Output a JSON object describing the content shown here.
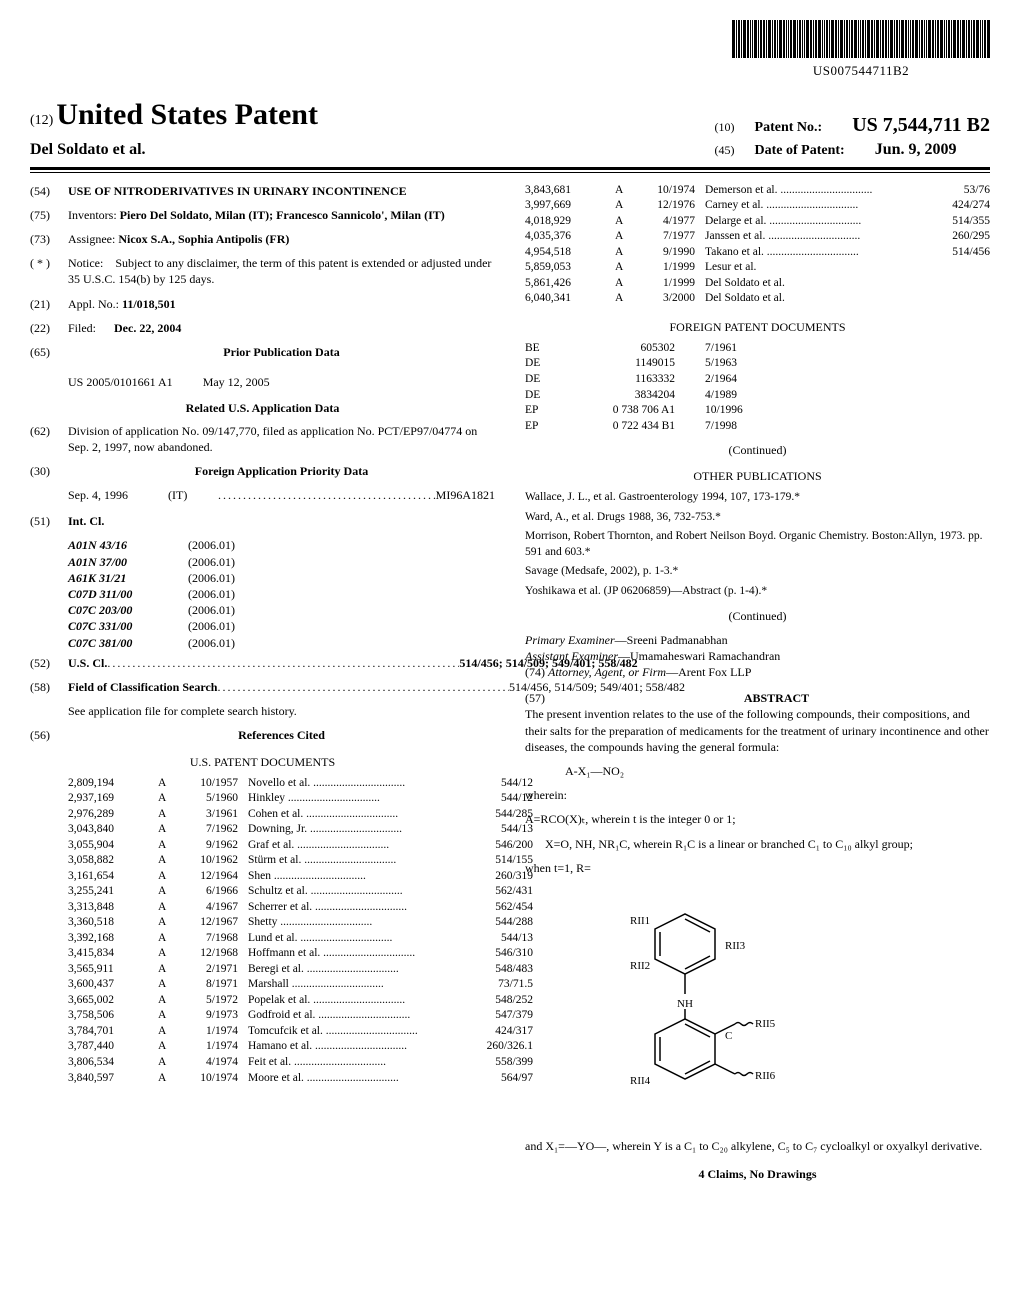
{
  "barcode_doc_number": "US007544711B2",
  "header": {
    "usp_prefix": "(12)",
    "usp_title": "United States Patent",
    "inventor_line": "Del Soldato et al.",
    "patent_no_prefix": "(10)",
    "patent_no_label": "Patent No.:",
    "patent_no_value": "US 7,544,711 B2",
    "date_prefix": "(45)",
    "date_label": "Date of Patent:",
    "date_value": "Jun. 9, 2009"
  },
  "left": {
    "title_code": "(54)",
    "title": "USE OF NITRODERIVATIVES IN URINARY INCONTINENCE",
    "inventors_code": "(75)",
    "inventors_label": "Inventors:",
    "inventors_value": "Piero Del Soldato, Milan (IT); Francesco Sannicolo', Milan (IT)",
    "assignee_code": "(73)",
    "assignee_label": "Assignee:",
    "assignee_value": "Nicox S.A., Sophia Antipolis (FR)",
    "notice_code": "( * )",
    "notice_label": "Notice:",
    "notice_value": "Subject to any disclaimer, the term of this patent is extended or adjusted under 35 U.S.C. 154(b) by 125 days.",
    "appl_code": "(21)",
    "appl_label": "Appl. No.:",
    "appl_value": "11/018,501",
    "filed_code": "(22)",
    "filed_label": "Filed:",
    "filed_value": "Dec. 22, 2004",
    "prior_pub_code": "(65)",
    "prior_pub_heading": "Prior Publication Data",
    "prior_pub_num": "US 2005/0101661 A1",
    "prior_pub_date": "May 12, 2005",
    "related_heading": "Related U.S. Application Data",
    "division_code": "(62)",
    "division_text": "Division of application No. 09/147,770, filed as application No. PCT/EP97/04774 on Sep. 2, 1997, now abandoned.",
    "foreign_priority_code": "(30)",
    "foreign_priority_heading": "Foreign Application Priority Data",
    "foreign_priority_date": "Sep. 4, 1996",
    "foreign_priority_cc": "(IT)",
    "foreign_priority_num": "MI96A1821",
    "intcl_code": "(51)",
    "intcl_label": "Int. Cl.",
    "intcl": [
      {
        "code": "A01N 43/16",
        "year": "(2006.01)"
      },
      {
        "code": "A01N 37/00",
        "year": "(2006.01)"
      },
      {
        "code": "A61K 31/21",
        "year": "(2006.01)"
      },
      {
        "code": "C07D 311/00",
        "year": "(2006.01)"
      },
      {
        "code": "C07C 203/00",
        "year": "(2006.01)"
      },
      {
        "code": "C07C 331/00",
        "year": "(2006.01)"
      },
      {
        "code": "C07C 381/00",
        "year": "(2006.01)"
      }
    ],
    "uscl_code": "(52)",
    "uscl_label": "U.S. Cl.",
    "uscl_value": "514/456; 514/509; 549/401; 558/482",
    "field_code": "(58)",
    "field_label": "Field of Classification Search",
    "field_value": "514/456, 514/509; 549/401; 558/482",
    "field_note": "See application file for complete search history.",
    "ref_code": "(56)",
    "ref_heading": "References Cited",
    "us_patents_heading": "U.S. PATENT DOCUMENTS",
    "us_patents": [
      {
        "num": "2,809,194",
        "type": "A",
        "date": "10/1957",
        "author": "Novello et al.",
        "cls": "544/12"
      },
      {
        "num": "2,937,169",
        "type": "A",
        "date": "5/1960",
        "author": "Hinkley",
        "cls": "544/12"
      },
      {
        "num": "2,976,289",
        "type": "A",
        "date": "3/1961",
        "author": "Cohen et al.",
        "cls": "544/285"
      },
      {
        "num": "3,043,840",
        "type": "A",
        "date": "7/1962",
        "author": "Downing, Jr.",
        "cls": "544/13"
      },
      {
        "num": "3,055,904",
        "type": "A",
        "date": "9/1962",
        "author": "Graf et al.",
        "cls": "546/200"
      },
      {
        "num": "3,058,882",
        "type": "A",
        "date": "10/1962",
        "author": "Stürm et al.",
        "cls": "514/155"
      },
      {
        "num": "3,161,654",
        "type": "A",
        "date": "12/1964",
        "author": "Shen",
        "cls": "260/319"
      },
      {
        "num": "3,255,241",
        "type": "A",
        "date": "6/1966",
        "author": "Schultz et al.",
        "cls": "562/431"
      },
      {
        "num": "3,313,848",
        "type": "A",
        "date": "4/1967",
        "author": "Scherrer et al.",
        "cls": "562/454"
      },
      {
        "num": "3,360,518",
        "type": "A",
        "date": "12/1967",
        "author": "Shetty",
        "cls": "544/288"
      },
      {
        "num": "3,392,168",
        "type": "A",
        "date": "7/1968",
        "author": "Lund et al.",
        "cls": "544/13"
      },
      {
        "num": "3,415,834",
        "type": "A",
        "date": "12/1968",
        "author": "Hoffmann et al.",
        "cls": "546/310"
      },
      {
        "num": "3,565,911",
        "type": "A",
        "date": "2/1971",
        "author": "Beregi et al.",
        "cls": "548/483"
      },
      {
        "num": "3,600,437",
        "type": "A",
        "date": "8/1971",
        "author": "Marshall",
        "cls": "73/71.5"
      },
      {
        "num": "3,665,002",
        "type": "A",
        "date": "5/1972",
        "author": "Popelak et al.",
        "cls": "548/252"
      },
      {
        "num": "3,758,506",
        "type": "A",
        "date": "9/1973",
        "author": "Godfroid et al.",
        "cls": "547/379"
      },
      {
        "num": "3,784,701",
        "type": "A",
        "date": "1/1974",
        "author": "Tomcufcik et al.",
        "cls": "424/317"
      },
      {
        "num": "3,787,440",
        "type": "A",
        "date": "1/1974",
        "author": "Hamano et al.",
        "cls": "260/326.1"
      },
      {
        "num": "3,806,534",
        "type": "A",
        "date": "4/1974",
        "author": "Feit et al.",
        "cls": "558/399"
      },
      {
        "num": "3,840,597",
        "type": "A",
        "date": "10/1974",
        "author": "Moore et al.",
        "cls": "564/97"
      }
    ]
  },
  "right": {
    "us_patents_cont": [
      {
        "num": "3,843,681",
        "type": "A",
        "date": "10/1974",
        "author": "Demerson et al.",
        "cls": "53/76"
      },
      {
        "num": "3,997,669",
        "type": "A",
        "date": "12/1976",
        "author": "Carney et al.",
        "cls": "424/274"
      },
      {
        "num": "4,018,929",
        "type": "A",
        "date": "4/1977",
        "author": "Delarge et al.",
        "cls": "514/355"
      },
      {
        "num": "4,035,376",
        "type": "A",
        "date": "7/1977",
        "author": "Janssen et al.",
        "cls": "260/295"
      },
      {
        "num": "4,954,518",
        "type": "A",
        "date": "9/1990",
        "author": "Takano et al.",
        "cls": "514/456"
      },
      {
        "num": "5,859,053",
        "type": "A",
        "date": "1/1999",
        "author": "Lesur et al.",
        "cls": ""
      },
      {
        "num": "5,861,426",
        "type": "A",
        "date": "1/1999",
        "author": "Del Soldato et al.",
        "cls": ""
      },
      {
        "num": "6,040,341",
        "type": "A",
        "date": "3/2000",
        "author": "Del Soldato et al.",
        "cls": ""
      }
    ],
    "foreign_heading": "FOREIGN PATENT DOCUMENTS",
    "foreign": [
      {
        "cc": "BE",
        "num": "605302",
        "date": "7/1961"
      },
      {
        "cc": "DE",
        "num": "1149015",
        "date": "5/1963"
      },
      {
        "cc": "DE",
        "num": "1163332",
        "date": "2/1964"
      },
      {
        "cc": "DE",
        "num": "3834204",
        "date": "4/1989"
      },
      {
        "cc": "EP",
        "num": "0 738 706 A1",
        "date": "10/1996"
      },
      {
        "cc": "EP",
        "num": "0 722 434 B1",
        "date": "7/1998"
      }
    ],
    "continued_label": "(Continued)",
    "other_pub_heading": "OTHER PUBLICATIONS",
    "other_pubs": [
      "Wallace, J. L., et al. Gastroenterology 1994, 107, 173-179.*",
      "Ward, A., et al. Drugs 1988, 36, 732-753.*",
      "Morrison, Robert Thornton, and Robert Neilson Boyd. Organic Chemistry. Boston:Allyn, 1973. pp. 591 and 603.*",
      "Savage (Medsafe, 2002), p. 1-3.*",
      "Yoshikawa et al. (JP 06206859)—Abstract (p. 1-4).*"
    ],
    "examiner_label": "Primary Examiner",
    "examiner_value": "Sreeni Padmanabhan",
    "asst_examiner_label": "Assistant Examiner",
    "asst_examiner_value": "Umamaheswari Ramachandran",
    "attorney_code": "(74)",
    "attorney_label": "Attorney, Agent, or Firm",
    "attorney_value": "Arent Fox LLP",
    "abstract_code": "(57)",
    "abstract_heading": "ABSTRACT",
    "abstract_p1": "The present invention relates to the use of the following compounds, their compositions, and their salts for the preparation of medicaments for the treatment of urinary incontinence and other diseases, the compounds having the general formula:",
    "formula1": "A-X₁—NO₂",
    "wherein": "wherein:",
    "abs_line1": "A=RCO(X)ₜ, wherein t is the integer 0 or 1;",
    "abs_line2": "X=O, NH, NR₁C, wherein R₁C is a linear or branched C₁ to C₁₀ alkyl group;",
    "abs_line3": "when t=1, R=",
    "chem_labels": {
      "r1": "RII1",
      "r2": "RII2",
      "r3": "RII3",
      "r4": "RII4",
      "r5": "RII5",
      "r6": "RII6",
      "nh": "NH",
      "c": "C"
    },
    "abs_line4": "and X₁=—YO—, wherein Y is a C₁ to C₂₀ alkylene, C₅ to C₇ cycloalkyl or oxyalkyl derivative.",
    "claims_line": "4 Claims, No Drawings"
  }
}
